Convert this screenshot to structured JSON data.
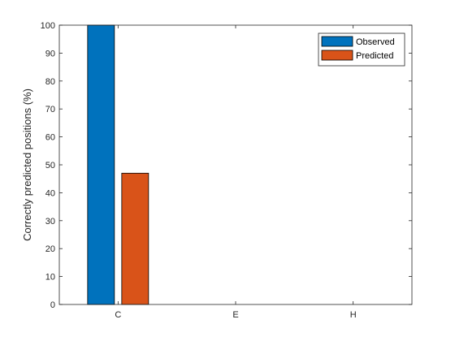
{
  "chart_data": {
    "type": "bar",
    "categories": [
      "C",
      "E",
      "H"
    ],
    "series": [
      {
        "name": "Observed",
        "color": "#0072BD",
        "values": [
          100,
          0,
          0
        ]
      },
      {
        "name": "Predicted",
        "color": "#D95319",
        "values": [
          47,
          0,
          0
        ]
      }
    ],
    "title": "",
    "xlabel": "",
    "ylabel": "Correctly predicted positions (%)",
    "ylim": [
      0,
      100
    ],
    "yticks": [
      0,
      10,
      20,
      30,
      40,
      50,
      60,
      70,
      80,
      90,
      100
    ],
    "legend_placement": "top-right",
    "grid": false
  }
}
